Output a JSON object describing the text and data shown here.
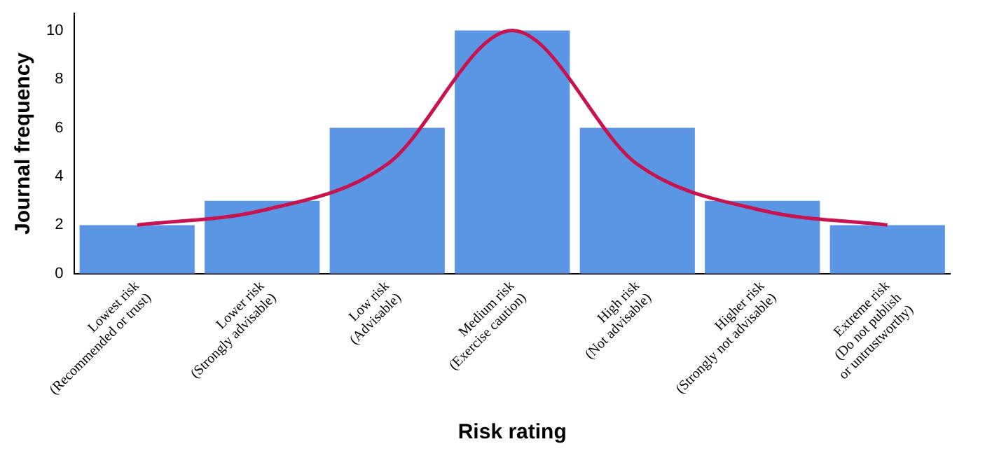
{
  "chart_data": {
    "type": "bar",
    "xlabel": "Risk rating",
    "ylabel": "Journal frequency",
    "categories": [
      "Lowest risk\n(Recommended or trust)",
      "Lower risk\n(Strongly advisable)",
      "Low risk\n(Advisable)",
      "Medium risk\n(Exercise caution)",
      "High risk\n(Not advisable)",
      "Higher risk\n(Strongly not advisable)",
      "Extreme risk\n(Do not publish\nor untrustworthy)"
    ],
    "series": [
      {
        "color": "#5a96e3",
        "values": [
          2,
          3,
          6,
          10,
          6,
          3,
          2
        ]
      },
      {
        "type": "line",
        "color": "#c8134e",
        "values": [
          2,
          2.6,
          4.5,
          10,
          4.5,
          2.6,
          2
        ]
      }
    ],
    "ylim": [
      0,
      10.7
    ],
    "yticks": [
      0,
      2,
      4,
      6,
      8,
      10
    ],
    "grid": false,
    "legend": false,
    "marker": "none"
  }
}
